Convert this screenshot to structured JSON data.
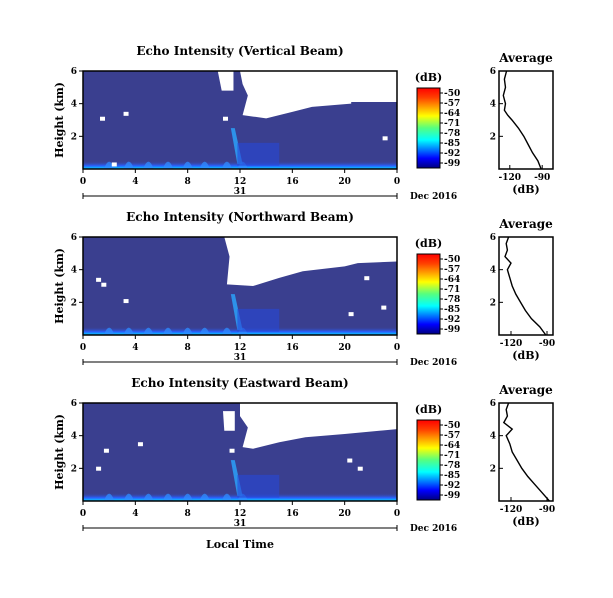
{
  "chart_data": [
    {
      "type": "heatmap",
      "title": "Echo Intensity (Vertical Beam)",
      "ylabel": "Height (km)",
      "ylim": [
        0,
        6
      ],
      "yticks": [
        "2",
        "4",
        "6"
      ],
      "xlim": [
        0,
        24
      ],
      "xticks": [
        "0",
        "4",
        "8",
        "12",
        "16",
        "20",
        "0"
      ],
      "date_day": "31",
      "date_label": "Dec 2016",
      "colorbar": {
        "unit": "(dB)",
        "labels": [
          "-50",
          "-57",
          "-64",
          "-71",
          "-78",
          "-85",
          "-92",
          "-99"
        ],
        "colormap": "jet"
      },
      "missing_data_region": "white (no echo) above ~2.7 km after 12 h; strong echo band below 0.5 km",
      "profile": {
        "title": "Average",
        "xlabel": "(dB)",
        "xticks": [
          "-120",
          "-90"
        ],
        "xlim": [
          -130,
          -80
        ],
        "yticks": [
          "2",
          "4",
          "6"
        ],
        "height_km": [
          0.0,
          0.5,
          1.0,
          1.5,
          2.0,
          2.5,
          3.0,
          3.3,
          3.6,
          4.0,
          4.5,
          5.0,
          5.5,
          6.0
        ],
        "mean_db": [
          -91,
          -94,
          -99,
          -103,
          -107,
          -112,
          -118,
          -122,
          -125,
          -124,
          -126,
          -124,
          -125,
          -123
        ]
      }
    },
    {
      "type": "heatmap",
      "title": "Echo Intensity (Northward Beam)",
      "ylabel": "Height (km)",
      "ylim": [
        0,
        6
      ],
      "yticks": [
        "2",
        "4",
        "6"
      ],
      "xlim": [
        0,
        24
      ],
      "xticks": [
        "0",
        "4",
        "8",
        "12",
        "16",
        "20",
        "0"
      ],
      "date_day": "31",
      "date_label": "Dec 2016",
      "colorbar": {
        "unit": "(dB)",
        "labels": [
          "-50",
          "-57",
          "-64",
          "-71",
          "-78",
          "-85",
          "-92",
          "-99"
        ],
        "colormap": "jet"
      },
      "missing_data_region": "white above ~2.9 km after 11 h",
      "profile": {
        "title": "Average",
        "xlabel": "(dB)",
        "xticks": [
          "-120",
          "-90"
        ],
        "xlim": [
          -130,
          -85
        ],
        "yticks": [
          "2",
          "4",
          "6"
        ],
        "height_km": [
          0.0,
          0.5,
          1.0,
          1.5,
          2.0,
          2.5,
          3.0,
          3.5,
          4.0,
          4.4,
          4.8,
          5.2,
          5.6,
          6.0
        ],
        "mean_db": [
          -91,
          -96,
          -103,
          -108,
          -112,
          -116,
          -119,
          -121,
          -123,
          -120,
          -125,
          -123,
          -124,
          -122
        ]
      }
    },
    {
      "type": "heatmap",
      "title": "Echo Intensity (Eastward Beam)",
      "ylabel": "Height (km)",
      "ylim": [
        0,
        6
      ],
      "yticks": [
        "2",
        "4",
        "6"
      ],
      "xlim": [
        0,
        24
      ],
      "xticks": [
        "0",
        "4",
        "8",
        "12",
        "16",
        "20",
        "0"
      ],
      "date_day": "31",
      "date_label": "Dec 2016",
      "colorbar": {
        "unit": "(dB)",
        "labels": [
          "-50",
          "-57",
          "-64",
          "-71",
          "-78",
          "-85",
          "-92",
          "-99"
        ],
        "colormap": "jet"
      },
      "missing_data_region": "white above ~2.6 km after 12 h",
      "profile": {
        "title": "Average",
        "xlabel": "(dB)",
        "xticks": [
          "-120",
          "-90"
        ],
        "xlim": [
          -130,
          -85
        ],
        "yticks": [
          "2",
          "4",
          "6"
        ],
        "height_km": [
          0.0,
          0.5,
          1.0,
          1.5,
          2.0,
          2.5,
          3.0,
          3.5,
          4.0,
          4.4,
          4.8,
          5.2,
          5.6,
          6.0
        ],
        "mean_db": [
          -88,
          -94,
          -100,
          -106,
          -111,
          -115,
          -119,
          -121,
          -124,
          -119,
          -126,
          -123,
          -124,
          -122
        ]
      }
    }
  ],
  "xlabel": "Local Time"
}
